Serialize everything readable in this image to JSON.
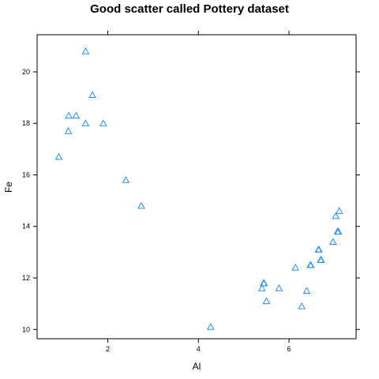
{
  "chart_data": {
    "type": "scatter",
    "title": "Good scatter called Pottery dataset",
    "xlabel": "Al",
    "ylabel": "Fe",
    "xlim": [
      0.44,
      7.48
    ],
    "ylim": [
      9.64,
      21.44
    ],
    "x_ticks": [
      2,
      4,
      6
    ],
    "y_ticks": [
      10,
      12,
      14,
      16,
      18,
      20
    ],
    "marker": "open-triangle",
    "color": "#1E90FF",
    "points": [
      {
        "x": 1.51,
        "y": 20.8
      },
      {
        "x": 1.66,
        "y": 19.1
      },
      {
        "x": 1.14,
        "y": 18.3
      },
      {
        "x": 1.3,
        "y": 18.3
      },
      {
        "x": 1.51,
        "y": 18.0
      },
      {
        "x": 1.9,
        "y": 18.0
      },
      {
        "x": 1.13,
        "y": 17.7
      },
      {
        "x": 0.92,
        "y": 16.7
      },
      {
        "x": 2.4,
        "y": 15.8
      },
      {
        "x": 2.74,
        "y": 14.8
      },
      {
        "x": 7.11,
        "y": 14.6
      },
      {
        "x": 7.03,
        "y": 14.4
      },
      {
        "x": 7.09,
        "y": 13.8
      },
      {
        "x": 7.07,
        "y": 13.8
      },
      {
        "x": 6.97,
        "y": 13.4
      },
      {
        "x": 6.65,
        "y": 13.1
      },
      {
        "x": 6.66,
        "y": 13.1
      },
      {
        "x": 6.71,
        "y": 12.7
      },
      {
        "x": 6.7,
        "y": 12.7
      },
      {
        "x": 6.47,
        "y": 12.5
      },
      {
        "x": 6.48,
        "y": 12.5
      },
      {
        "x": 6.14,
        "y": 12.4
      },
      {
        "x": 5.44,
        "y": 11.8
      },
      {
        "x": 5.45,
        "y": 11.8
      },
      {
        "x": 5.4,
        "y": 11.6
      },
      {
        "x": 5.78,
        "y": 11.6
      },
      {
        "x": 6.39,
        "y": 11.5
      },
      {
        "x": 5.5,
        "y": 11.1
      },
      {
        "x": 6.28,
        "y": 10.9
      },
      {
        "x": 4.27,
        "y": 10.1
      }
    ]
  }
}
